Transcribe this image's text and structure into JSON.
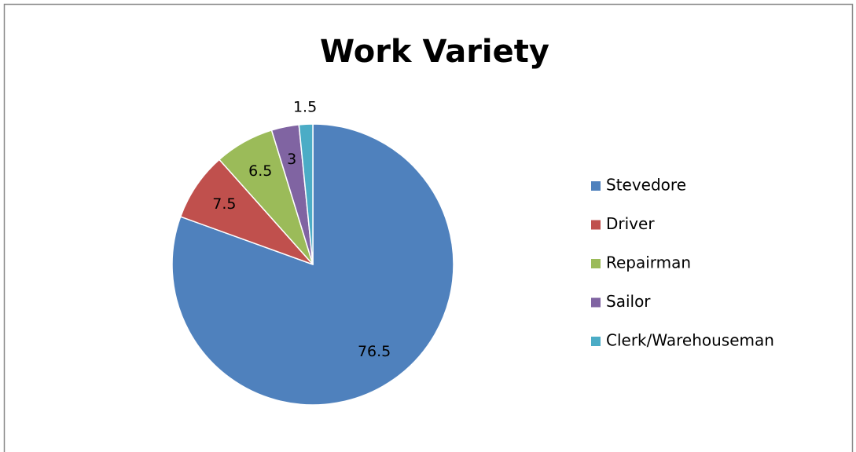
{
  "chart_data": {
    "type": "pie",
    "title": "Work Variety",
    "categories": [
      "Stevedore",
      "Driver",
      "Repairman",
      "Sailor",
      "Clerk/Warehouseman"
    ],
    "values": [
      76.5,
      7.5,
      6.5,
      3,
      1.5
    ],
    "colors": [
      "#4f81bd",
      "#c0504d",
      "#9bbb59",
      "#8064a2",
      "#4bacc6"
    ],
    "legend": "right"
  }
}
